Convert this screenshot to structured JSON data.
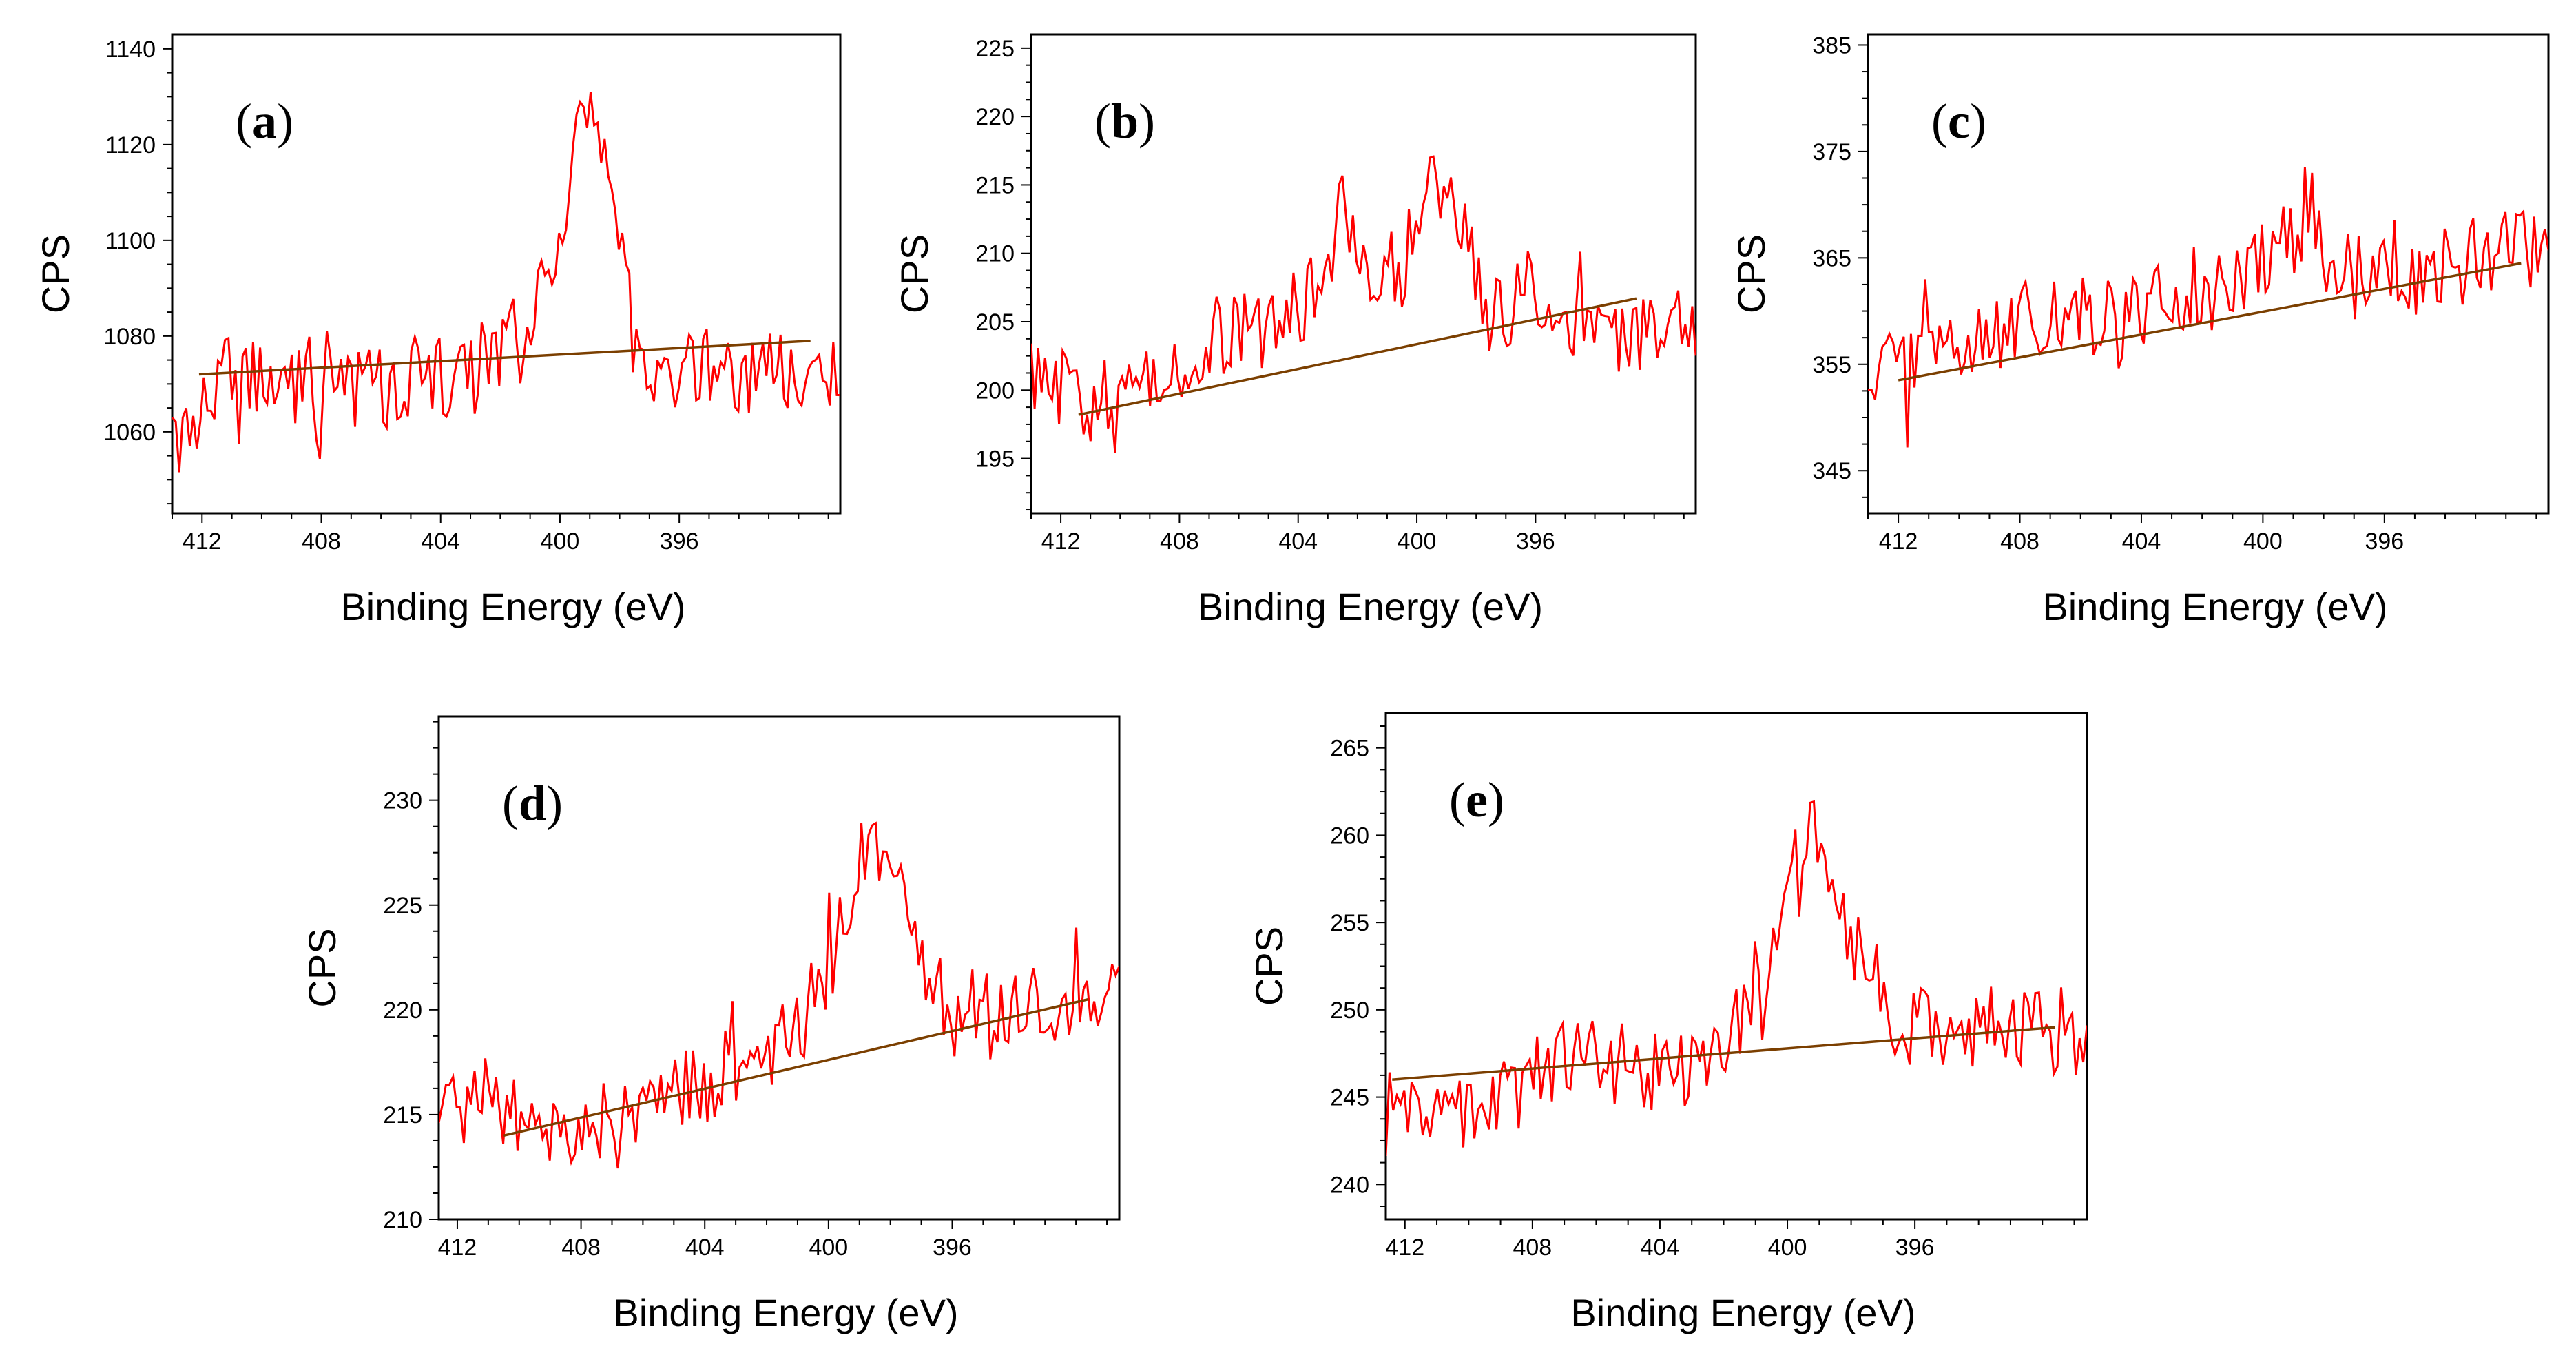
{
  "figure": {
    "xlabel": "Binding Energy (eV)",
    "ylabel": "CPS"
  },
  "chart_data": [
    {
      "type": "line",
      "panel": "a",
      "xlabel": "Binding Energy (eV)",
      "ylabel": "CPS",
      "xlim": [
        413,
        390.6
      ],
      "ylim": [
        1043,
        1143
      ],
      "xticks": [
        412,
        408,
        404,
        400,
        396
      ],
      "yticks": [
        1060,
        1080,
        1100,
        1120,
        1140
      ],
      "colors": {
        "spectrum": "#ff0000",
        "background": "#7b3f00"
      },
      "baseline": {
        "x": [
          412.1,
          391.6
        ],
        "y": [
          1072,
          1079
        ]
      },
      "series": [
        {
          "name": "spectrum",
          "x": [
            413.0,
            411.0,
            409.0,
            407.0,
            405.0,
            403.0,
            402.0,
            401.0,
            400.2,
            399.5,
            399.0,
            398.5,
            398.0,
            397.5,
            397.0,
            395.0,
            393.0,
            391.0,
            390.6
          ],
          "y": [
            1058,
            1073,
            1070,
            1068,
            1070,
            1073,
            1078,
            1085,
            1095,
            1121,
            1130,
            1115,
            1100,
            1078,
            1075,
            1073,
            1072,
            1075,
            1072
          ]
        }
      ]
    },
    {
      "type": "line",
      "panel": "b",
      "xlabel": "Binding Energy (eV)",
      "ylabel": "CPS",
      "xlim": [
        413,
        390.6
      ],
      "ylim": [
        191,
        226
      ],
      "xticks": [
        412,
        408,
        404,
        400,
        396
      ],
      "yticks": [
        195,
        200,
        205,
        210,
        215,
        220,
        225
      ],
      "colors": {
        "spectrum": "#ff0000",
        "background": "#7b3f00"
      },
      "baseline": {
        "x": [
          411.4,
          392.6
        ],
        "y": [
          198.2,
          206.7
        ]
      },
      "series": [
        {
          "name": "spectrum",
          "x": [
            413.0,
            411.0,
            409.0,
            407.0,
            405.0,
            403.5,
            402.5,
            401.5,
            400.5,
            399.5,
            398.5,
            397.5,
            396.5,
            395.0,
            393.0,
            391.0,
            390.6
          ],
          "y": [
            201,
            199,
            201,
            203,
            205,
            207,
            213,
            208,
            209,
            216,
            212,
            205,
            207,
            205,
            203,
            206,
            205
          ]
        }
      ]
    },
    {
      "type": "line",
      "panel": "c",
      "xlabel": "Binding Energy (eV)",
      "ylabel": "CPS",
      "xlim": [
        413,
        390.6
      ],
      "ylim": [
        341,
        386
      ],
      "xticks": [
        412,
        408,
        404,
        400,
        396
      ],
      "yticks": [
        345,
        355,
        365,
        375,
        385
      ],
      "colors": {
        "spectrum": "#ff0000",
        "background": "#7b3f00"
      },
      "baseline": {
        "x": [
          412.0,
          391.5
        ],
        "y": [
          353.5,
          364.5
        ]
      },
      "series": [
        {
          "name": "spectrum",
          "x": [
            413.0,
            411.0,
            409.0,
            407.0,
            405.0,
            403.0,
            401.0,
            399.5,
            398.5,
            397.5,
            396.5,
            395.0,
            393.0,
            391.0,
            390.6
          ],
          "y": [
            353,
            356,
            358,
            360,
            359,
            361,
            362,
            366,
            370,
            365,
            363,
            364,
            365,
            366,
            365
          ]
        }
      ]
    },
    {
      "type": "line",
      "panel": "d",
      "xlabel": "Binding Energy (eV)",
      "ylabel": "CPS",
      "xlim": [
        412.6,
        390.6
      ],
      "ylim": [
        210,
        234
      ],
      "xticks": [
        412,
        408,
        404,
        400,
        396
      ],
      "yticks": [
        210,
        215,
        220,
        225,
        230
      ],
      "colors": {
        "spectrum": "#ff0000",
        "background": "#7b3f00"
      },
      "baseline": {
        "x": [
          410.5,
          391.6
        ],
        "y": [
          214.0,
          220.5
        ]
      },
      "series": [
        {
          "name": "spectrum",
          "x": [
            412.6,
            411.0,
            409.0,
            407.0,
            405.0,
            403.0,
            401.0,
            400.0,
            399.3,
            398.6,
            398.0,
            397.4,
            396.8,
            395.5,
            394.0,
            392.5,
            391.0,
            390.6
          ],
          "y": [
            215,
            216,
            214,
            215,
            216,
            217,
            219,
            222,
            226,
            228,
            227,
            225,
            221,
            220,
            220,
            220,
            220,
            221
          ]
        }
      ]
    },
    {
      "type": "line",
      "panel": "e",
      "xlabel": "Binding Energy (eV)",
      "ylabel": "CPS",
      "xlim": [
        412.6,
        390.6
      ],
      "ylim": [
        238,
        267
      ],
      "xticks": [
        412,
        408,
        404,
        400,
        396
      ],
      "yticks": [
        240,
        245,
        250,
        255,
        260,
        265
      ],
      "colors": {
        "spectrum": "#ff0000",
        "background": "#7b3f00"
      },
      "baseline": {
        "x": [
          412.4,
          391.6
        ],
        "y": [
          246.0,
          249.0
        ]
      },
      "series": [
        {
          "name": "spectrum",
          "x": [
            412.6,
            411.0,
            409.0,
            407.0,
            405.0,
            403.0,
            401.5,
            400.5,
            399.8,
            399.2,
            398.6,
            398.0,
            397.3,
            396.5,
            395.0,
            393.5,
            392.0,
            390.6
          ],
          "y": [
            244,
            244,
            245,
            247,
            247,
            246,
            249,
            253,
            258,
            261,
            258,
            254,
            252,
            249,
            249,
            249,
            249,
            248
          ]
        }
      ]
    }
  ]
}
